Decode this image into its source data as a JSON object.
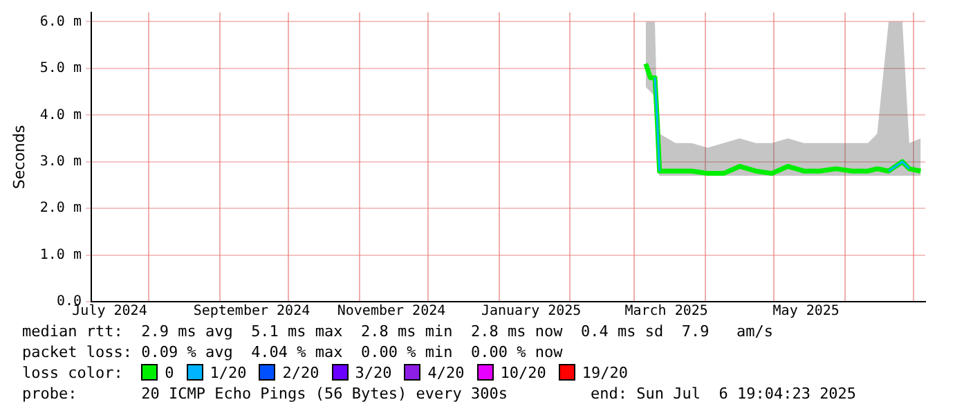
{
  "chart_data": {
    "type": "line",
    "ylabel": "Seconds",
    "x": [
      "2025-03-06",
      "2025-03-08",
      "2025-03-10",
      "2025-03-11",
      "2025-03-12",
      "2025-03-19",
      "2025-03-26",
      "2025-04-02",
      "2025-04-09",
      "2025-04-16",
      "2025-04-23",
      "2025-04-30",
      "2025-05-07",
      "2025-05-14",
      "2025-05-21",
      "2025-05-28",
      "2025-06-04",
      "2025-06-11",
      "2025-06-15",
      "2025-06-20",
      "2025-06-26",
      "2025-06-29",
      "2025-07-04"
    ],
    "series": [
      {
        "name": "0",
        "color": "#00ee00",
        "values": [
          5.1,
          4.8,
          4.8,
          3.9,
          2.8,
          2.8,
          2.8,
          2.75,
          2.75,
          2.9,
          2.8,
          2.75,
          2.9,
          2.8,
          2.8,
          2.85,
          2.8,
          2.8,
          2.85,
          2.8,
          3.0,
          2.85,
          2.8
        ],
        "lower": [
          4.6,
          4.5,
          4.4,
          2.8,
          2.7,
          2.7,
          2.7,
          2.7,
          2.7,
          2.7,
          2.7,
          2.7,
          2.7,
          2.7,
          2.7,
          2.7,
          2.7,
          2.7,
          2.7,
          2.7,
          2.7,
          2.7,
          2.7
        ],
        "upper": [
          6.0,
          6.0,
          6.0,
          4.0,
          3.6,
          3.4,
          3.4,
          3.3,
          3.4,
          3.5,
          3.4,
          3.4,
          3.5,
          3.4,
          3.4,
          3.4,
          3.4,
          3.4,
          3.6,
          6.0,
          6.0,
          3.4,
          3.5
        ]
      },
      {
        "name": "1/20",
        "color": "#00b4ff",
        "values": [
          null,
          null,
          4.8,
          3.9,
          2.8,
          null,
          null,
          null,
          null,
          null,
          null,
          null,
          null,
          null,
          null,
          null,
          null,
          null,
          null,
          2.8,
          3.0,
          2.85,
          null
        ]
      },
      {
        "name": "2/20",
        "color": "#0050ff",
        "values": [
          null,
          null,
          null,
          null,
          null,
          null,
          null,
          null,
          null,
          null,
          null,
          null,
          null,
          null,
          null,
          null,
          null,
          null,
          null,
          null,
          null,
          null,
          null
        ]
      },
      {
        "name": "3/20",
        "color": "#6a00ff",
        "values": [
          null,
          null,
          null,
          null,
          null,
          null,
          null,
          null,
          null,
          null,
          null,
          null,
          null,
          null,
          null,
          null,
          null,
          null,
          null,
          null,
          null,
          null,
          null
        ]
      },
      {
        "name": "4/20",
        "color": "#8c1ee6",
        "values": [
          null,
          null,
          null,
          null,
          null,
          null,
          null,
          null,
          null,
          null,
          null,
          null,
          null,
          null,
          null,
          null,
          null,
          null,
          null,
          null,
          null,
          null,
          null
        ]
      },
      {
        "name": "10/20",
        "color": "#e600ff",
        "values": [
          null,
          null,
          null,
          null,
          null,
          null,
          null,
          null,
          null,
          null,
          null,
          null,
          null,
          null,
          null,
          null,
          null,
          null,
          null,
          null,
          null,
          null,
          null
        ]
      },
      {
        "name": "19/20",
        "color": "#ff0000",
        "values": [
          null,
          null,
          null,
          null,
          null,
          null,
          null,
          null,
          null,
          null,
          null,
          null,
          null,
          null,
          null,
          null,
          null,
          null,
          null,
          null,
          null,
          null,
          null
        ]
      }
    ],
    "xlim": [
      "2024-07-07",
      "2025-07-06"
    ],
    "xticks": [
      {
        "value": "2024-07-15",
        "label": "July 2024"
      },
      {
        "value": "2024-08-01",
        "label": null
      },
      {
        "value": "2024-09-01",
        "label": null
      },
      {
        "value": "2024-09-15",
        "label": "September 2024"
      },
      {
        "value": "2024-10-01",
        "label": null
      },
      {
        "value": "2024-11-01",
        "label": null
      },
      {
        "value": "2024-11-15",
        "label": "November 2024"
      },
      {
        "value": "2024-12-01",
        "label": null
      },
      {
        "value": "2025-01-01",
        "label": null
      },
      {
        "value": "2025-01-15",
        "label": "January 2025"
      },
      {
        "value": "2025-02-01",
        "label": null
      },
      {
        "value": "2025-03-01",
        "label": null
      },
      {
        "value": "2025-03-15",
        "label": "March 2025"
      },
      {
        "value": "2025-04-01",
        "label": null
      },
      {
        "value": "2025-05-01",
        "label": null
      },
      {
        "value": "2025-05-15",
        "label": "May 2025"
      },
      {
        "value": "2025-06-01",
        "label": null
      },
      {
        "value": "2025-07-01",
        "label": null
      }
    ],
    "ylim": [
      0,
      6.2
    ],
    "yticks": [
      {
        "value": 0,
        "label": "0.0"
      },
      {
        "value": 1,
        "label": "1.0 m"
      },
      {
        "value": 2,
        "label": "2.0 m"
      },
      {
        "value": 3,
        "label": "3.0 m"
      },
      {
        "value": 4,
        "label": "4.0 m"
      },
      {
        "value": 5,
        "label": "5.0 m"
      },
      {
        "value": 6,
        "label": "6.0 m"
      }
    ],
    "grid": true,
    "legend": "bottom",
    "legend_title": "loss color:",
    "annotations": [
      "median rtt:  2.9 ms avg  5.1 ms max  2.8 ms min  2.8 ms now  0.4 ms sd  7.9   am/s",
      "packet loss: 0.09 % avg  4.04 % max  0.00 % min  0.00 % now",
      "probe:       20 ICMP Echo Pings (56 Bytes) every 300s",
      "end: Sun Jul  6 19:04:23 2025"
    ]
  }
}
